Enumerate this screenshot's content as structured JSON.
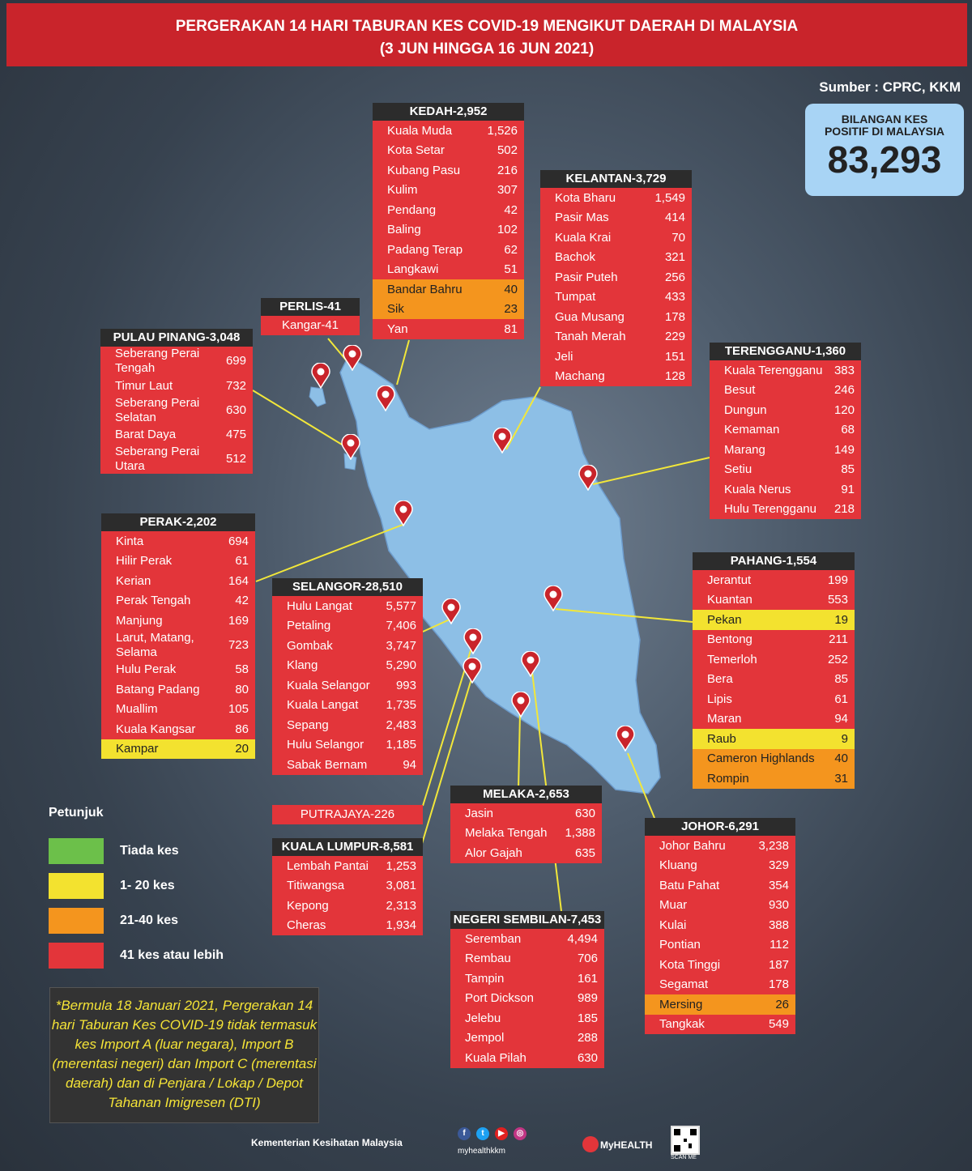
{
  "header": {
    "title": "PERGERAKAN 14 HARI TABURAN KES COVID-19 MENGIKUT DAERAH DI MALAYSIA",
    "subtitle": "(3 JUN HINGGA 16 JUN 2021)"
  },
  "source": "Sumber : CPRC, KKM",
  "total": {
    "label1": "BILANGAN KES",
    "label2": "POSITIF DI MALAYSIA",
    "value": "83,293"
  },
  "colors": {
    "red": "#e3353a",
    "yellow": "#f3e22f",
    "orange": "#f4951e",
    "green": "#6cc04a",
    "title_bg": "#2c2c2c",
    "header": "#c9242b",
    "map": "#8dbfe6"
  },
  "states": {
    "kedah": {
      "title": "KEDAH-2,952",
      "rows": [
        {
          "name": "Kuala Muda",
          "value": "1,526",
          "level": "red"
        },
        {
          "name": "Kota Setar",
          "value": "502",
          "level": "red"
        },
        {
          "name": "Kubang Pasu",
          "value": "216",
          "level": "red"
        },
        {
          "name": "Kulim",
          "value": "307",
          "level": "red"
        },
        {
          "name": "Pendang",
          "value": "42",
          "level": "red"
        },
        {
          "name": "Baling",
          "value": "102",
          "level": "red"
        },
        {
          "name": "Padang Terap",
          "value": "62",
          "level": "red"
        },
        {
          "name": "Langkawi",
          "value": "51",
          "level": "red"
        },
        {
          "name": "Bandar Bahru",
          "value": "40",
          "level": "orange"
        },
        {
          "name": "Sik",
          "value": "23",
          "level": "orange"
        },
        {
          "name": "Yan",
          "value": "81",
          "level": "red"
        }
      ]
    },
    "kelantan": {
      "title": "KELANTAN-3,729",
      "rows": [
        {
          "name": "Kota Bharu",
          "value": "1,549",
          "level": "red"
        },
        {
          "name": "Pasir Mas",
          "value": "414",
          "level": "red"
        },
        {
          "name": "Kuala Krai",
          "value": "70",
          "level": "red"
        },
        {
          "name": "Bachok",
          "value": "321",
          "level": "red"
        },
        {
          "name": "Pasir Puteh",
          "value": "256",
          "level": "red"
        },
        {
          "name": "Tumpat",
          "value": "433",
          "level": "red"
        },
        {
          "name": "Gua Musang",
          "value": "178",
          "level": "red"
        },
        {
          "name": "Tanah Merah",
          "value": "229",
          "level": "red"
        },
        {
          "name": "Jeli",
          "value": "151",
          "level": "red"
        },
        {
          "name": "Machang",
          "value": "128",
          "level": "red"
        }
      ]
    },
    "perlis": {
      "title": "PERLIS-41",
      "rows": [
        {
          "name": "Kangar-41",
          "value": "",
          "level": "red"
        }
      ]
    },
    "penang": {
      "title": "PULAU PINANG-3,048",
      "rows": [
        {
          "name": "Seberang Perai Tengah",
          "value": "699",
          "level": "red"
        },
        {
          "name": "Timur Laut",
          "value": "732",
          "level": "red"
        },
        {
          "name": "Seberang Perai Selatan",
          "value": "630",
          "level": "red"
        },
        {
          "name": "Barat Daya",
          "value": "475",
          "level": "red"
        },
        {
          "name": "Seberang Perai Utara",
          "value": "512",
          "level": "red"
        }
      ]
    },
    "terengganu": {
      "title": "TERENGGANU-1,360",
      "rows": [
        {
          "name": "Kuala Terengganu",
          "value": "383",
          "level": "red"
        },
        {
          "name": "Besut",
          "value": "246",
          "level": "red"
        },
        {
          "name": "Dungun",
          "value": "120",
          "level": "red"
        },
        {
          "name": "Kemaman",
          "value": "68",
          "level": "red"
        },
        {
          "name": "Marang",
          "value": "149",
          "level": "red"
        },
        {
          "name": "Setiu",
          "value": "85",
          "level": "red"
        },
        {
          "name": "Kuala Nerus",
          "value": "91",
          "level": "red"
        },
        {
          "name": "Hulu Terengganu",
          "value": "218",
          "level": "red"
        }
      ]
    },
    "perak": {
      "title": "PERAK-2,202",
      "rows": [
        {
          "name": "Kinta",
          "value": "694",
          "level": "red"
        },
        {
          "name": "Hilir Perak",
          "value": "61",
          "level": "red"
        },
        {
          "name": "Kerian",
          "value": "164",
          "level": "red"
        },
        {
          "name": "Perak Tengah",
          "value": "42",
          "level": "red"
        },
        {
          "name": "Manjung",
          "value": "169",
          "level": "red"
        },
        {
          "name": "Larut, Matang, Selama",
          "value": "723",
          "level": "red"
        },
        {
          "name": "Hulu Perak",
          "value": "58",
          "level": "red"
        },
        {
          "name": "Batang Padang",
          "value": "80",
          "level": "red"
        },
        {
          "name": "Muallim",
          "value": "105",
          "level": "red"
        },
        {
          "name": "Kuala Kangsar",
          "value": "86",
          "level": "red"
        },
        {
          "name": "Kampar",
          "value": "20",
          "level": "yellow"
        }
      ]
    },
    "selangor": {
      "title": "SELANGOR-28,510",
      "rows": [
        {
          "name": "Hulu Langat",
          "value": "5,577",
          "level": "red"
        },
        {
          "name": "Petaling",
          "value": "7,406",
          "level": "red"
        },
        {
          "name": "Gombak",
          "value": "3,747",
          "level": "red"
        },
        {
          "name": "Klang",
          "value": "5,290",
          "level": "red"
        },
        {
          "name": "Kuala Selangor",
          "value": "993",
          "level": "red"
        },
        {
          "name": "Kuala Langat",
          "value": "1,735",
          "level": "red"
        },
        {
          "name": "Sepang",
          "value": "2,483",
          "level": "red"
        },
        {
          "name": "Hulu Selangor",
          "value": "1,185",
          "level": "red"
        },
        {
          "name": "Sabak Bernam",
          "value": "94",
          "level": "red"
        }
      ]
    },
    "pahang": {
      "title": "PAHANG-1,554",
      "rows": [
        {
          "name": "Jerantut",
          "value": "199",
          "level": "red"
        },
        {
          "name": "Kuantan",
          "value": "553",
          "level": "red"
        },
        {
          "name": "Pekan",
          "value": "19",
          "level": "yellow"
        },
        {
          "name": "Bentong",
          "value": "211",
          "level": "red"
        },
        {
          "name": "Temerloh",
          "value": "252",
          "level": "red"
        },
        {
          "name": "Bera",
          "value": "85",
          "level": "red"
        },
        {
          "name": "Lipis",
          "value": "61",
          "level": "red"
        },
        {
          "name": "Maran",
          "value": "94",
          "level": "red"
        },
        {
          "name": "Raub",
          "value": "9",
          "level": "yellow"
        },
        {
          "name": "Cameron Highlands",
          "value": "40",
          "level": "orange"
        },
        {
          "name": "Rompin",
          "value": "31",
          "level": "orange"
        }
      ]
    },
    "putrajaya": {
      "title": "PUTRAJAYA-226"
    },
    "kl": {
      "title": "KUALA LUMPUR-8,581",
      "rows": [
        {
          "name": "Lembah Pantai",
          "value": "1,253",
          "level": "red"
        },
        {
          "name": "Titiwangsa",
          "value": "3,081",
          "level": "red"
        },
        {
          "name": "Kepong",
          "value": "2,313",
          "level": "red"
        },
        {
          "name": "Cheras",
          "value": "1,934",
          "level": "red"
        }
      ]
    },
    "melaka": {
      "title": "MELAKA-2,653",
      "rows": [
        {
          "name": "Jasin",
          "value": "630",
          "level": "red"
        },
        {
          "name": "Melaka Tengah",
          "value": "1,388",
          "level": "red"
        },
        {
          "name": "Alor Gajah",
          "value": "635",
          "level": "red"
        }
      ]
    },
    "johor": {
      "title": "JOHOR-6,291",
      "rows": [
        {
          "name": "Johor Bahru",
          "value": "3,238",
          "level": "red"
        },
        {
          "name": "Kluang",
          "value": "329",
          "level": "red"
        },
        {
          "name": "Batu Pahat",
          "value": "354",
          "level": "red"
        },
        {
          "name": "Muar",
          "value": "930",
          "level": "red"
        },
        {
          "name": "Kulai",
          "value": "388",
          "level": "red"
        },
        {
          "name": "Pontian",
          "value": "112",
          "level": "red"
        },
        {
          "name": "Kota Tinggi",
          "value": "187",
          "level": "red"
        },
        {
          "name": "Segamat",
          "value": "178",
          "level": "red"
        },
        {
          "name": "Mersing",
          "value": "26",
          "level": "orange"
        },
        {
          "name": "Tangkak",
          "value": "549",
          "level": "red"
        }
      ]
    },
    "ns": {
      "title": "NEGERI SEMBILAN-7,453",
      "rows": [
        {
          "name": "Seremban",
          "value": "4,494",
          "level": "red"
        },
        {
          "name": "Rembau",
          "value": "706",
          "level": "red"
        },
        {
          "name": "Tampin",
          "value": "161",
          "level": "red"
        },
        {
          "name": "Port Dickson",
          "value": "989",
          "level": "red"
        },
        {
          "name": "Jelebu",
          "value": "185",
          "level": "red"
        },
        {
          "name": "Jempol",
          "value": "288",
          "level": "red"
        },
        {
          "name": "Kuala Pilah",
          "value": "630",
          "level": "red"
        }
      ]
    }
  },
  "legend": {
    "title": "Petunjuk",
    "items": [
      {
        "label": "Tiada kes",
        "level": "green"
      },
      {
        "label": "1- 20 kes",
        "level": "yellow"
      },
      {
        "label": "21-40 kes",
        "level": "orange"
      },
      {
        "label": "41 kes atau lebih",
        "level": "red"
      }
    ]
  },
  "note": "*Bermula 18 Januari 2021, Pergerakan 14 hari Taburan Kes COVID-19 tidak termasuk kes Import A (luar negara), Import B (merentasi negeri) dan Import C (merentasi daerah) dan di Penjara / Lokap / Depot Tahanan Imigresen (DTI)",
  "footer": {
    "ministry": "Kementerian Kesihatan Malaysia",
    "handle": "myhealthkkm",
    "logo_text": "MyHEALTH",
    "qr_caption": "SCAN ME",
    "social_icons": [
      "facebook-icon",
      "twitter-icon",
      "youtube-icon",
      "instagram-icon"
    ]
  }
}
